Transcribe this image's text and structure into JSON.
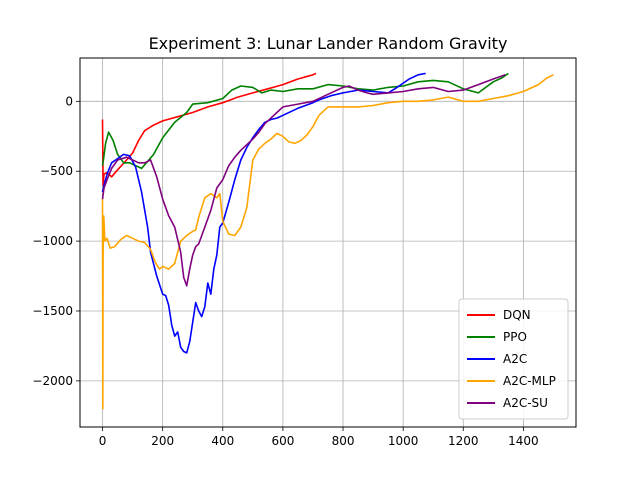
{
  "chart_data": {
    "type": "line",
    "title": "Experiment 3: Lunar Lander Random Gravity",
    "xlabel": "",
    "ylabel": "",
    "xlim": [
      -75,
      1575
    ],
    "ylim": [
      -2330,
      310
    ],
    "xticks": [
      0,
      200,
      400,
      600,
      800,
      1000,
      1200,
      1400
    ],
    "yticks": [
      -2000,
      -1500,
      -1000,
      -500,
      0
    ],
    "xtick_labels": [
      "0",
      "200",
      "400",
      "600",
      "800",
      "1000",
      "1200",
      "1400"
    ],
    "ytick_labels": [
      "−2000",
      "−1500",
      "−1000",
      "−500",
      "0"
    ],
    "grid": true,
    "legend_position": "lower-right",
    "series": [
      {
        "name": "DQN",
        "color": "#ff0000",
        "points": [
          [
            0,
            -130
          ],
          [
            2,
            -600
          ],
          [
            5,
            -520
          ],
          [
            15,
            -510
          ],
          [
            30,
            -540
          ],
          [
            50,
            -490
          ],
          [
            80,
            -420
          ],
          [
            100,
            -370
          ],
          [
            120,
            -280
          ],
          [
            140,
            -210
          ],
          [
            170,
            -170
          ],
          [
            200,
            -140
          ],
          [
            250,
            -110
          ],
          [
            300,
            -80
          ],
          [
            350,
            -40
          ],
          [
            400,
            -10
          ],
          [
            450,
            30
          ],
          [
            500,
            60
          ],
          [
            550,
            90
          ],
          [
            600,
            120
          ],
          [
            650,
            160
          ],
          [
            700,
            190
          ],
          [
            710,
            200
          ]
        ]
      },
      {
        "name": "PPO",
        "color": "#008000",
        "points": [
          [
            0,
            -460
          ],
          [
            3,
            -420
          ],
          [
            10,
            -300
          ],
          [
            20,
            -220
          ],
          [
            35,
            -280
          ],
          [
            50,
            -380
          ],
          [
            70,
            -440
          ],
          [
            90,
            -440
          ],
          [
            110,
            -460
          ],
          [
            130,
            -480
          ],
          [
            150,
            -430
          ],
          [
            170,
            -380
          ],
          [
            200,
            -260
          ],
          [
            240,
            -150
          ],
          [
            280,
            -80
          ],
          [
            300,
            -20
          ],
          [
            350,
            -10
          ],
          [
            400,
            20
          ],
          [
            430,
            80
          ],
          [
            460,
            110
          ],
          [
            500,
            100
          ],
          [
            530,
            60
          ],
          [
            560,
            80
          ],
          [
            600,
            70
          ],
          [
            650,
            90
          ],
          [
            700,
            90
          ],
          [
            750,
            120
          ],
          [
            800,
            110
          ],
          [
            850,
            90
          ],
          [
            900,
            80
          ],
          [
            950,
            100
          ],
          [
            1000,
            110
          ],
          [
            1050,
            140
          ],
          [
            1100,
            150
          ],
          [
            1150,
            140
          ],
          [
            1200,
            90
          ],
          [
            1250,
            60
          ],
          [
            1300,
            140
          ],
          [
            1330,
            170
          ],
          [
            1350,
            200
          ]
        ]
      },
      {
        "name": "A2C",
        "color": "#0000ff",
        "points": [
          [
            0,
            -650
          ],
          [
            5,
            -600
          ],
          [
            15,
            -520
          ],
          [
            30,
            -440
          ],
          [
            50,
            -410
          ],
          [
            70,
            -380
          ],
          [
            90,
            -390
          ],
          [
            110,
            -470
          ],
          [
            130,
            -650
          ],
          [
            150,
            -900
          ],
          [
            160,
            -1080
          ],
          [
            180,
            -1250
          ],
          [
            200,
            -1380
          ],
          [
            210,
            -1390
          ],
          [
            220,
            -1460
          ],
          [
            230,
            -1600
          ],
          [
            240,
            -1680
          ],
          [
            250,
            -1650
          ],
          [
            260,
            -1760
          ],
          [
            270,
            -1790
          ],
          [
            280,
            -1800
          ],
          [
            290,
            -1720
          ],
          [
            300,
            -1580
          ],
          [
            310,
            -1440
          ],
          [
            320,
            -1500
          ],
          [
            330,
            -1540
          ],
          [
            340,
            -1470
          ],
          [
            350,
            -1300
          ],
          [
            360,
            -1380
          ],
          [
            370,
            -1200
          ],
          [
            380,
            -1100
          ],
          [
            390,
            -900
          ],
          [
            400,
            -870
          ],
          [
            420,
            -720
          ],
          [
            440,
            -560
          ],
          [
            460,
            -420
          ],
          [
            480,
            -330
          ],
          [
            500,
            -260
          ],
          [
            520,
            -200
          ],
          [
            540,
            -150
          ],
          [
            560,
            -130
          ],
          [
            580,
            -120
          ],
          [
            600,
            -100
          ],
          [
            650,
            -50
          ],
          [
            700,
            -10
          ],
          [
            720,
            10
          ],
          [
            760,
            40
          ],
          [
            800,
            60
          ],
          [
            850,
            80
          ],
          [
            900,
            70
          ],
          [
            950,
            60
          ],
          [
            980,
            100
          ],
          [
            1020,
            160
          ],
          [
            1050,
            190
          ],
          [
            1075,
            200
          ]
        ]
      },
      {
        "name": "A2C-MLP",
        "color": "#ffa500",
        "points": [
          [
            0,
            -700
          ],
          [
            1,
            -2200
          ],
          [
            2,
            -1100
          ],
          [
            4,
            -820
          ],
          [
            8,
            -1000
          ],
          [
            15,
            -980
          ],
          [
            25,
            -1050
          ],
          [
            40,
            -1040
          ],
          [
            60,
            -990
          ],
          [
            80,
            -960
          ],
          [
            100,
            -980
          ],
          [
            120,
            -1000
          ],
          [
            140,
            -1010
          ],
          [
            160,
            -1060
          ],
          [
            170,
            -1120
          ],
          [
            180,
            -1170
          ],
          [
            190,
            -1200
          ],
          [
            200,
            -1180
          ],
          [
            220,
            -1200
          ],
          [
            240,
            -1160
          ],
          [
            260,
            -1000
          ],
          [
            280,
            -960
          ],
          [
            300,
            -930
          ],
          [
            310,
            -920
          ],
          [
            320,
            -830
          ],
          [
            340,
            -690
          ],
          [
            360,
            -660
          ],
          [
            380,
            -690
          ],
          [
            390,
            -660
          ],
          [
            400,
            -860
          ],
          [
            420,
            -950
          ],
          [
            440,
            -960
          ],
          [
            460,
            -900
          ],
          [
            480,
            -760
          ],
          [
            500,
            -420
          ],
          [
            520,
            -340
          ],
          [
            540,
            -300
          ],
          [
            560,
            -270
          ],
          [
            580,
            -230
          ],
          [
            600,
            -250
          ],
          [
            620,
            -290
          ],
          [
            640,
            -300
          ],
          [
            660,
            -280
          ],
          [
            680,
            -240
          ],
          [
            700,
            -180
          ],
          [
            720,
            -100
          ],
          [
            750,
            -40
          ],
          [
            800,
            -40
          ],
          [
            850,
            -40
          ],
          [
            900,
            -30
          ],
          [
            950,
            -10
          ],
          [
            1000,
            0
          ],
          [
            1050,
            0
          ],
          [
            1100,
            10
          ],
          [
            1150,
            30
          ],
          [
            1200,
            0
          ],
          [
            1250,
            0
          ],
          [
            1300,
            20
          ],
          [
            1350,
            40
          ],
          [
            1400,
            70
          ],
          [
            1450,
            120
          ],
          [
            1480,
            170
          ],
          [
            1500,
            190
          ]
        ]
      },
      {
        "name": "A2C-SU",
        "color": "#800080",
        "points": [
          [
            0,
            -700
          ],
          [
            5,
            -620
          ],
          [
            15,
            -560
          ],
          [
            30,
            -480
          ],
          [
            50,
            -420
          ],
          [
            80,
            -400
          ],
          [
            100,
            -420
          ],
          [
            120,
            -440
          ],
          [
            140,
            -440
          ],
          [
            160,
            -420
          ],
          [
            180,
            -540
          ],
          [
            200,
            -700
          ],
          [
            220,
            -820
          ],
          [
            240,
            -900
          ],
          [
            260,
            -1080
          ],
          [
            270,
            -1260
          ],
          [
            280,
            -1320
          ],
          [
            290,
            -1200
          ],
          [
            300,
            -1100
          ],
          [
            310,
            -1040
          ],
          [
            320,
            -1020
          ],
          [
            340,
            -900
          ],
          [
            360,
            -780
          ],
          [
            380,
            -620
          ],
          [
            400,
            -560
          ],
          [
            420,
            -460
          ],
          [
            440,
            -400
          ],
          [
            460,
            -350
          ],
          [
            480,
            -310
          ],
          [
            500,
            -270
          ],
          [
            520,
            -220
          ],
          [
            540,
            -160
          ],
          [
            560,
            -120
          ],
          [
            580,
            -80
          ],
          [
            600,
            -40
          ],
          [
            650,
            -20
          ],
          [
            700,
            0
          ],
          [
            750,
            50
          ],
          [
            800,
            100
          ],
          [
            820,
            110
          ],
          [
            850,
            80
          ],
          [
            880,
            60
          ],
          [
            900,
            50
          ],
          [
            950,
            60
          ],
          [
            1000,
            70
          ],
          [
            1050,
            90
          ],
          [
            1100,
            100
          ],
          [
            1150,
            70
          ],
          [
            1200,
            80
          ],
          [
            1250,
            120
          ],
          [
            1300,
            160
          ],
          [
            1340,
            190
          ]
        ]
      }
    ]
  }
}
